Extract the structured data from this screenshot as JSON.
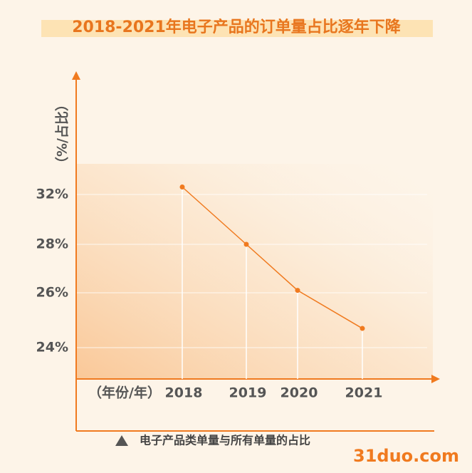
{
  "chart_data": {
    "type": "line",
    "title": "2018-2021年电子产品的订单量占比逐年下降",
    "y_label": "（%/占比）",
    "x_label": "（年份/年）",
    "legend_label": "电子产品类单量与所有单量的占比",
    "watermark": "31duo.com",
    "categories": [
      "2018",
      "2019",
      "2020",
      "2021"
    ],
    "values": [
      32.6,
      28,
      26.1,
      24.7
    ],
    "color": "#f07a1f",
    "yticks": [
      {
        "value": 24,
        "label": "24%"
      },
      {
        "value": 26,
        "label": "26%"
      },
      {
        "value": 28,
        "label": "28%"
      },
      {
        "value": 32,
        "label": "32%"
      }
    ],
    "grid": true
  }
}
